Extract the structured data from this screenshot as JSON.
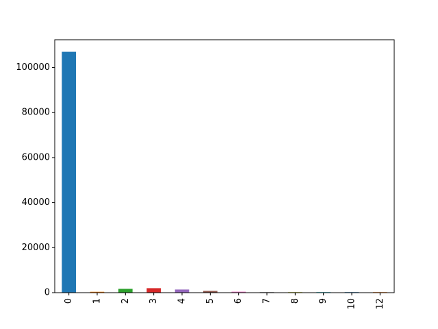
{
  "chart_data": {
    "type": "bar",
    "title": "",
    "xlabel": "",
    "ylabel": "",
    "categories": [
      "0",
      "1",
      "2",
      "3",
      "4",
      "5",
      "6",
      "7",
      "8",
      "9",
      "10",
      "12"
    ],
    "values": [
      107000,
      400,
      1700,
      2000,
      1400,
      800,
      450,
      250,
      60,
      40,
      20,
      10
    ],
    "colors": [
      "#1f77b4",
      "#ff7f0e",
      "#2ca02c",
      "#d62728",
      "#9467bd",
      "#8c564b",
      "#e377c2",
      "#7f7f7f",
      "#bcbd22",
      "#17becf",
      "#1f77b4",
      "#ff7f0e"
    ],
    "ylim": [
      0,
      112350
    ],
    "yticks": [
      0,
      20000,
      40000,
      60000,
      80000,
      100000
    ],
    "ytick_labels": [
      "0",
      "20000",
      "40000",
      "60000",
      "80000",
      "100000"
    ],
    "grid": false,
    "legend": false
  }
}
